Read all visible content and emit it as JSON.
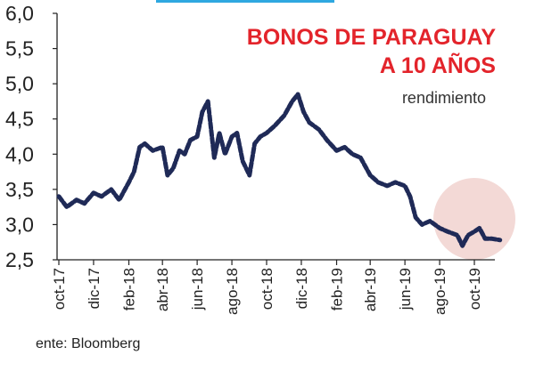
{
  "chart_data": {
    "type": "line",
    "title_line1": "BONOS DE PARAGUAY",
    "title_line2": "A 10 AÑOS",
    "subtitle": "rendimiento",
    "source": "ente: Bloomberg",
    "ylim": [
      2.5,
      6.0
    ],
    "y_ticks": [
      "6,0",
      "5,5",
      "5,0",
      "4,5",
      "4,0",
      "3,5",
      "3,0",
      "2,5"
    ],
    "x_ticks": [
      "oct-17",
      "dic-17",
      "feb-18",
      "abr-18",
      "jun-18",
      "ago-18",
      "oct-18",
      "dic-18",
      "feb-19",
      "abr-19",
      "jun-19",
      "ago-19",
      "oct-19"
    ],
    "series": [
      {
        "x": [
          "2017-10-01",
          "2017-10-15",
          "2017-11-01",
          "2017-11-15",
          "2017-12-01",
          "2017-12-15",
          "2018-01-01",
          "2018-01-15",
          "2018-02-01",
          "2018-02-10",
          "2018-02-20",
          "2018-03-01",
          "2018-03-15",
          "2018-04-01",
          "2018-04-10",
          "2018-04-20",
          "2018-05-01",
          "2018-05-10",
          "2018-05-20",
          "2018-06-01",
          "2018-06-10",
          "2018-06-20",
          "2018-07-01",
          "2018-07-10",
          "2018-07-20",
          "2018-08-01",
          "2018-08-10",
          "2018-08-20",
          "2018-09-01",
          "2018-09-10",
          "2018-09-20",
          "2018-10-01",
          "2018-10-15",
          "2018-11-01",
          "2018-11-15",
          "2018-11-25",
          "2018-12-05",
          "2018-12-15",
          "2019-01-01",
          "2019-01-15",
          "2019-02-01",
          "2019-02-15",
          "2019-03-01",
          "2019-03-15",
          "2019-04-01",
          "2019-04-15",
          "2019-05-01",
          "2019-05-15",
          "2019-06-01",
          "2019-06-10",
          "2019-06-20",
          "2019-07-01",
          "2019-07-15",
          "2019-08-01",
          "2019-08-15",
          "2019-09-01",
          "2019-09-10",
          "2019-09-20",
          "2019-10-01",
          "2019-10-10",
          "2019-10-20",
          "2019-11-01",
          "2019-11-15"
        ],
        "values": [
          3.4,
          3.25,
          3.35,
          3.3,
          3.45,
          3.4,
          3.5,
          3.35,
          3.6,
          3.75,
          4.1,
          4.15,
          4.05,
          4.1,
          3.7,
          3.8,
          4.05,
          4.0,
          4.2,
          4.25,
          4.6,
          4.75,
          3.95,
          4.3,
          4.0,
          4.25,
          4.3,
          3.9,
          3.7,
          4.15,
          4.25,
          4.3,
          4.4,
          4.55,
          4.75,
          4.85,
          4.6,
          4.45,
          4.35,
          4.2,
          4.05,
          4.1,
          4.0,
          3.95,
          3.7,
          3.6,
          3.55,
          3.6,
          3.55,
          3.4,
          3.1,
          3.0,
          3.05,
          2.95,
          2.9,
          2.85,
          2.7,
          2.85,
          2.9,
          2.95,
          2.8,
          2.8,
          2.78
        ]
      }
    ],
    "colors": {
      "line": "#1f2a57",
      "title": "#e3242b",
      "highlight": "#f3d9d6",
      "top_bar": "#2ea8e0"
    }
  }
}
